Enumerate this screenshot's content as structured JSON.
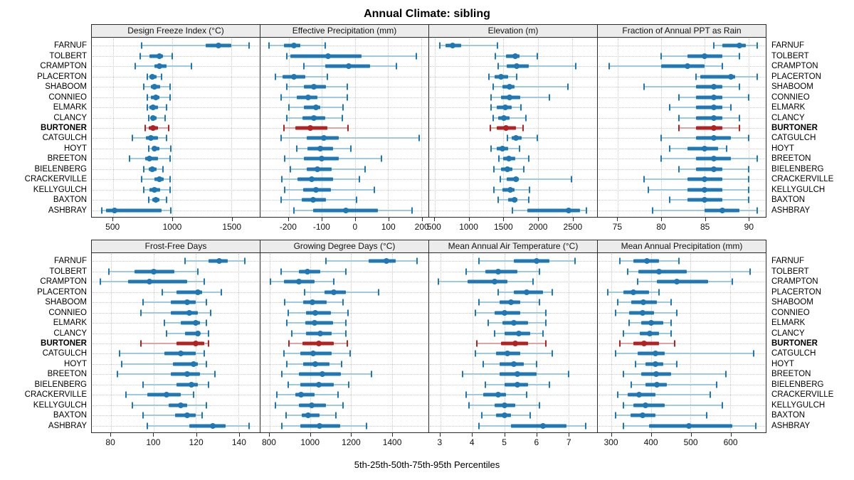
{
  "title": "Annual Climate: sibling",
  "footer_label": "5th-25th-50th-75th-95th Percentiles",
  "highlight_site": "BURTONER",
  "sites": [
    "FARNUF",
    "TOLBERT",
    "CRAMPTON",
    "PLACERTON",
    "SHABOOM",
    "CONNIEO",
    "ELMARK",
    "CLANCY",
    "BURTONER",
    "CATGULCH",
    "HOYT",
    "BREETON",
    "BIELENBERG",
    "CRACKERVILLE",
    "KELLYGULCH",
    "BAXTON",
    "ASHBRAY"
  ],
  "colors": {
    "series": "#1f77b4",
    "series_light": "#9ecae1",
    "highlight": "#b22222",
    "highlight_light": "#e3a2a2",
    "grid": "#c9c9c9",
    "strip_bg": "#ececec",
    "border": "#2a2a2a"
  },
  "chart_data": {
    "type": "percentile-dotplot",
    "percentiles": [
      "5th",
      "25th",
      "50th",
      "75th",
      "95th"
    ],
    "layout": {
      "rows": 2,
      "cols": 4,
      "site_labels_both_sides": true,
      "grid": "dotted",
      "highlight_color_site": "BURTONER"
    },
    "panels": [
      {
        "title": "Design Freeze Index (°C)",
        "band": "top",
        "xlim": [
          320,
          1740
        ],
        "ticks": [
          500,
          1000,
          1500
        ],
        "values": [
          [
            740,
            1280,
            1390,
            1500,
            1650
          ],
          [
            730,
            810,
            890,
            920,
            1000
          ],
          [
            690,
            850,
            890,
            950,
            1160
          ],
          [
            790,
            810,
            830,
            870,
            910
          ],
          [
            760,
            820,
            850,
            900,
            980
          ],
          [
            790,
            820,
            860,
            890,
            980
          ],
          [
            790,
            810,
            840,
            880,
            950
          ],
          [
            800,
            820,
            840,
            870,
            940
          ],
          [
            770,
            800,
            840,
            880,
            970
          ],
          [
            660,
            780,
            820,
            880,
            950
          ],
          [
            800,
            830,
            850,
            890,
            990
          ],
          [
            640,
            770,
            810,
            880,
            980
          ],
          [
            760,
            800,
            830,
            870,
            920
          ],
          [
            740,
            850,
            890,
            930,
            980
          ],
          [
            760,
            810,
            850,
            900,
            980
          ],
          [
            800,
            830,
            860,
            890,
            950
          ],
          [
            405,
            440,
            510,
            910,
            985
          ]
        ]
      },
      {
        "title": "Effective Precipitation (mm)",
        "band": "top",
        "xlim": [
          -285,
          222
        ],
        "ticks": [
          -200,
          -100,
          0,
          100,
          200
        ],
        "values": [
          [
            -260,
            -215,
            -185,
            -165,
            -90
          ],
          [
            -205,
            -195,
            -80,
            20,
            185
          ],
          [
            -155,
            -90,
            -18,
            45,
            125
          ],
          [
            -240,
            -218,
            -185,
            -150,
            -82
          ],
          [
            -205,
            -155,
            -123,
            -87,
            -23
          ],
          [
            -223,
            -175,
            -140,
            -113,
            -23
          ],
          [
            -200,
            -155,
            -118,
            -105,
            -35
          ],
          [
            -205,
            -158,
            -123,
            -90,
            -37
          ],
          [
            -215,
            -180,
            -134,
            -82,
            -20
          ],
          [
            -223,
            -146,
            -93,
            -48,
            193
          ],
          [
            -175,
            -143,
            -105,
            -66,
            -13
          ],
          [
            -213,
            -153,
            -100,
            -48,
            80
          ],
          [
            -195,
            -146,
            -114,
            -70,
            30
          ],
          [
            -220,
            -173,
            -130,
            -66,
            13
          ],
          [
            -213,
            -156,
            -118,
            -73,
            59
          ],
          [
            -223,
            -161,
            -127,
            -87,
            6
          ],
          [
            -184,
            -125,
            -27,
            70,
            173
          ]
        ]
      },
      {
        "title": "Elevation (m)",
        "band": "top",
        "xlim": [
          420,
          2860
        ],
        "ticks": [
          500,
          1000,
          1500,
          2000,
          2500
        ],
        "values": [
          [
            570,
            660,
            765,
            890,
            1415
          ],
          [
            1380,
            1535,
            1670,
            1730,
            1995
          ],
          [
            1420,
            1550,
            1695,
            1870,
            2545
          ],
          [
            1285,
            1370,
            1465,
            1570,
            1695
          ],
          [
            1350,
            1490,
            1590,
            1660,
            2440
          ],
          [
            1315,
            1465,
            1585,
            1740,
            2165
          ],
          [
            1315,
            1405,
            1525,
            1615,
            1750
          ],
          [
            1350,
            1420,
            1510,
            1590,
            1830
          ],
          [
            1305,
            1400,
            1535,
            1685,
            1785
          ],
          [
            1560,
            1615,
            1685,
            1765,
            1995
          ],
          [
            1315,
            1405,
            1490,
            1570,
            1730
          ],
          [
            1430,
            1500,
            1580,
            1670,
            1870
          ],
          [
            1360,
            1465,
            1560,
            1630,
            1800
          ],
          [
            1455,
            1550,
            1680,
            1725,
            2490
          ],
          [
            1360,
            1490,
            1595,
            1660,
            1880
          ],
          [
            1420,
            1570,
            1660,
            1705,
            1870
          ],
          [
            1630,
            1845,
            2445,
            2610,
            2710
          ]
        ]
      },
      {
        "title": "Fraction of Annual PPT as Rain",
        "band": "top",
        "xlim": [
          72.7,
          92
        ],
        "ticks": [
          75,
          80,
          85,
          90
        ],
        "values": [
          [
            86,
            87,
            89,
            89.7,
            91
          ],
          [
            80,
            83,
            85,
            87,
            89
          ],
          [
            74,
            80,
            83,
            85,
            87
          ],
          [
            84,
            84.5,
            88,
            88.5,
            91
          ],
          [
            78,
            84,
            86,
            87,
            89
          ],
          [
            82,
            84,
            86,
            87,
            90
          ],
          [
            81,
            84,
            86,
            87,
            88
          ],
          [
            82,
            84,
            86,
            87,
            89
          ],
          [
            82,
            84,
            86,
            87,
            89
          ],
          [
            80,
            84,
            86,
            88,
            90
          ],
          [
            81,
            83,
            85,
            86.5,
            87.5
          ],
          [
            80,
            84,
            86,
            88,
            91
          ],
          [
            82,
            84,
            86,
            87,
            90
          ],
          [
            78,
            83,
            85,
            87,
            90
          ],
          [
            78.5,
            83,
            85,
            87,
            90
          ],
          [
            81,
            83,
            85,
            87,
            90
          ],
          [
            79,
            85,
            87,
            89,
            91
          ]
        ]
      },
      {
        "title": "Frost-Free Days",
        "band": "bottom",
        "xlim": [
          71,
          150
        ],
        "ticks": [
          80,
          100,
          120,
          140
        ],
        "values": [
          [
            115,
            126,
            131,
            135,
            143
          ],
          [
            79,
            91,
            100,
            110,
            121
          ],
          [
            75,
            88,
            98,
            116,
            124
          ],
          [
            104,
            111,
            121,
            123,
            132
          ],
          [
            95,
            108,
            116,
            120,
            125
          ],
          [
            94,
            108,
            117,
            121,
            127
          ],
          [
            105,
            113,
            120,
            122,
            125
          ],
          [
            106,
            115,
            121,
            122,
            126
          ],
          [
            94,
            111,
            120,
            124,
            126
          ],
          [
            84,
            105,
            113,
            120,
            124
          ],
          [
            85,
            109,
            119,
            121,
            125
          ],
          [
            83,
            108,
            116,
            122,
            129
          ],
          [
            95,
            111,
            118,
            121,
            126
          ],
          [
            87,
            97,
            106,
            113,
            119
          ],
          [
            90,
            107,
            113,
            116,
            125
          ],
          [
            95,
            110,
            116,
            120,
            123
          ],
          [
            97,
            117,
            128,
            134,
            145
          ]
        ]
      },
      {
        "title": "Growing Degree Days (°C)",
        "band": "bottom",
        "xlim": [
          755,
          1580
        ],
        "ticks": [
          800,
          1000,
          1200,
          1400
        ],
        "values": [
          [
            1075,
            1285,
            1375,
            1420,
            1525
          ],
          [
            855,
            945,
            985,
            1050,
            1175
          ],
          [
            805,
            870,
            945,
            1020,
            1115
          ],
          [
            970,
            1070,
            1115,
            1175,
            1335
          ],
          [
            875,
            965,
            1010,
            1080,
            1160
          ],
          [
            890,
            980,
            1025,
            1100,
            1185
          ],
          [
            885,
            975,
            1020,
            1110,
            1175
          ],
          [
            910,
            980,
            1050,
            1105,
            1175
          ],
          [
            895,
            960,
            1040,
            1115,
            1180
          ],
          [
            870,
            950,
            1015,
            1105,
            1195
          ],
          [
            885,
            965,
            1025,
            1095,
            1155
          ],
          [
            860,
            945,
            1060,
            1150,
            1300
          ],
          [
            890,
            950,
            1040,
            1115,
            1190
          ],
          [
            835,
            925,
            955,
            1020,
            1135
          ],
          [
            830,
            945,
            1005,
            1075,
            1160
          ],
          [
            880,
            958,
            990,
            1045,
            1125
          ],
          [
            860,
            950,
            1045,
            1145,
            1275
          ]
        ]
      },
      {
        "title": "Mean Annual Air Temperature (°C)",
        "band": "bottom",
        "xlim": [
          2.65,
          7.9
        ],
        "ticks": [
          3,
          4,
          5,
          6,
          7
        ],
        "values": [
          [
            4.2,
            5.3,
            6.0,
            6.4,
            7.2
          ],
          [
            3.8,
            4.4,
            4.8,
            5.4,
            6.1
          ],
          [
            2.95,
            3.85,
            4.7,
            5.1,
            5.9
          ],
          [
            4.8,
            5.3,
            5.7,
            6.2,
            6.5
          ],
          [
            4.2,
            4.85,
            5.2,
            5.5,
            6.1
          ],
          [
            4.1,
            4.7,
            5.0,
            5.5,
            6.3
          ],
          [
            4.5,
            4.95,
            5.3,
            5.75,
            6.3
          ],
          [
            4.7,
            5.0,
            5.45,
            5.8,
            6.2
          ],
          [
            4.15,
            4.9,
            5.35,
            5.75,
            6.3
          ],
          [
            4.1,
            4.75,
            5.1,
            5.5,
            6.5
          ],
          [
            4.35,
            4.85,
            5.3,
            5.6,
            6.0
          ],
          [
            3.7,
            4.85,
            5.4,
            6.0,
            7.0
          ],
          [
            4.4,
            5.0,
            5.4,
            5.75,
            6.4
          ],
          [
            3.8,
            4.35,
            4.8,
            5.05,
            5.7
          ],
          [
            3.9,
            4.7,
            5.0,
            5.35,
            6.1
          ],
          [
            4.3,
            4.75,
            5.0,
            5.2,
            5.8
          ],
          [
            4.2,
            5.2,
            6.2,
            6.95,
            7.55
          ]
        ]
      },
      {
        "title": "Mean Annual Precipitation (mm)",
        "band": "bottom",
        "xlim": [
          265,
          690
        ],
        "ticks": [
          300,
          400,
          500,
          600
        ],
        "values": [
          [
            320,
            355,
            390,
            420,
            470
          ],
          [
            340,
            368,
            420,
            490,
            650
          ],
          [
            365,
            415,
            465,
            545,
            605
          ],
          [
            290,
            330,
            355,
            395,
            420
          ],
          [
            315,
            350,
            380,
            415,
            450
          ],
          [
            310,
            345,
            378,
            408,
            465
          ],
          [
            345,
            375,
            400,
            430,
            450
          ],
          [
            330,
            372,
            396,
            420,
            450
          ],
          [
            320,
            355,
            382,
            420,
            460
          ],
          [
            310,
            365,
            410,
            435,
            660
          ],
          [
            360,
            385,
            410,
            430,
            465
          ],
          [
            330,
            375,
            413,
            450,
            590
          ],
          [
            350,
            385,
            415,
            440,
            565
          ],
          [
            315,
            340,
            370,
            410,
            550
          ],
          [
            330,
            355,
            385,
            435,
            580
          ],
          [
            310,
            348,
            378,
            410,
            540
          ],
          [
            330,
            395,
            495,
            605,
            665
          ]
        ]
      }
    ]
  }
}
